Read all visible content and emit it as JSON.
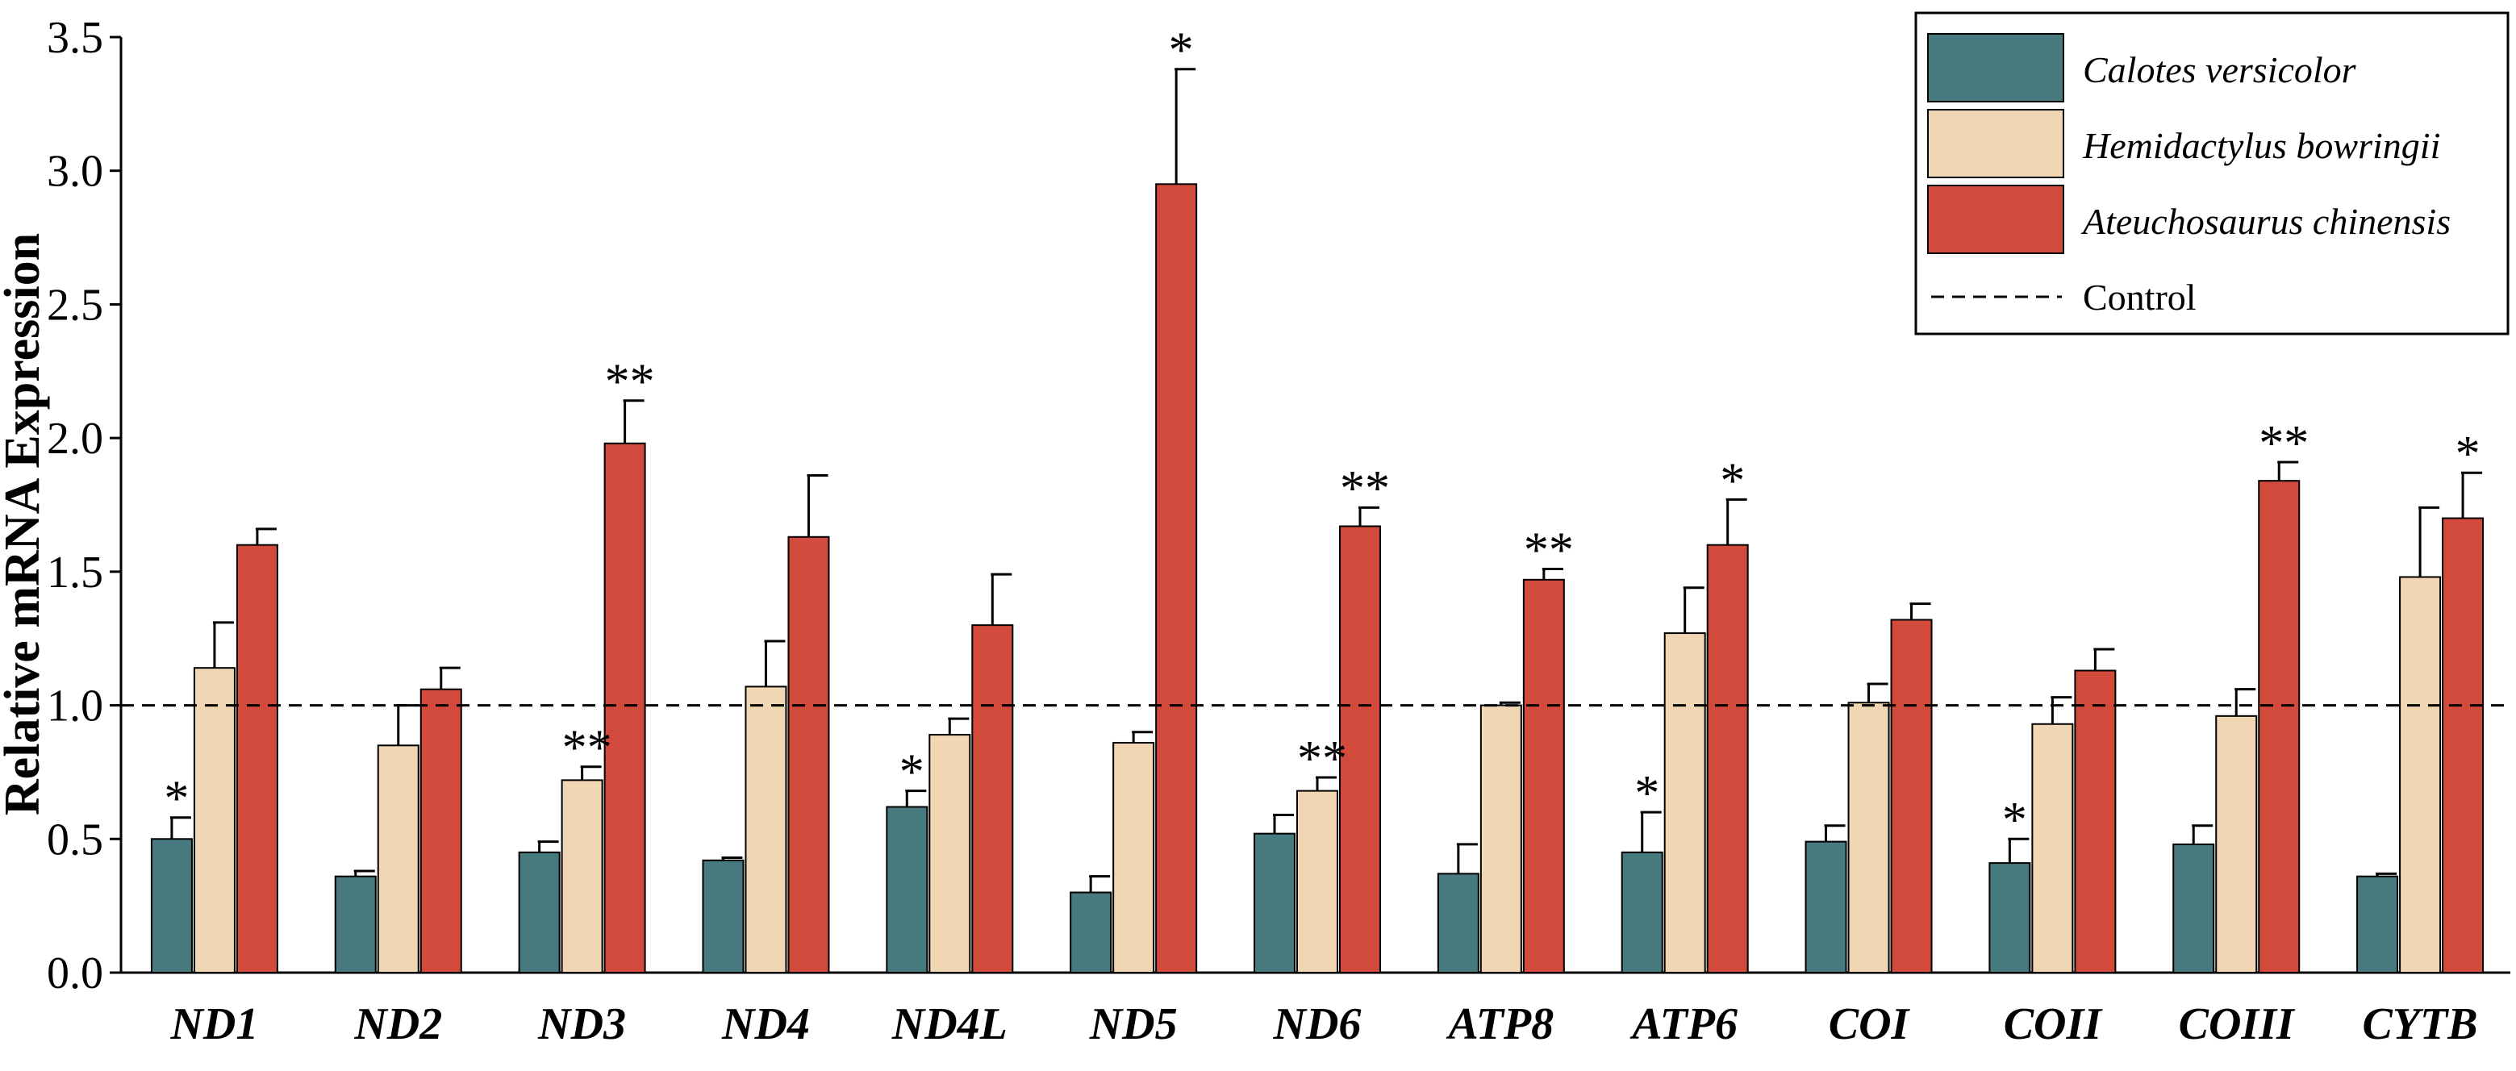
{
  "chart_data": {
    "type": "bar",
    "title": "",
    "xlabel": "",
    "ylabel": "Relative mRNA Expression",
    "ylim": [
      0,
      3.5
    ],
    "yticks": [
      "0.0",
      "0.5",
      "1.0",
      "1.5",
      "2.0",
      "2.5",
      "3.0",
      "3.5"
    ],
    "categories": [
      "ND1",
      "ND2",
      "ND3",
      "ND4",
      "ND4L",
      "ND5",
      "ND6",
      "ATP8",
      "ATP6",
      "COI",
      "COII",
      "COIII",
      "CYTB"
    ],
    "series": [
      {
        "name": "Calotes versicolor",
        "color": "#467a7e",
        "values": [
          0.5,
          0.36,
          0.45,
          0.42,
          0.62,
          0.3,
          0.52,
          0.37,
          0.45,
          0.49,
          0.41,
          0.48,
          0.36
        ],
        "errors": [
          0.08,
          0.02,
          0.04,
          0.01,
          0.06,
          0.06,
          0.07,
          0.11,
          0.15,
          0.06,
          0.09,
          0.07,
          0.01
        ],
        "significance": [
          "*",
          "",
          "",
          "",
          "*",
          "",
          "",
          "",
          "*",
          "",
          "*",
          "",
          ""
        ]
      },
      {
        "name": "Hemidactylus bowringii",
        "color": "#f0d6b2",
        "values": [
          1.14,
          0.85,
          0.72,
          1.07,
          0.89,
          0.86,
          0.68,
          1.0,
          1.27,
          1.01,
          0.93,
          0.96,
          1.48
        ],
        "errors": [
          0.17,
          0.15,
          0.05,
          0.17,
          0.06,
          0.04,
          0.05,
          0.01,
          0.17,
          0.07,
          0.1,
          0.1,
          0.26
        ],
        "significance": [
          "",
          "",
          "**",
          "",
          "",
          "",
          "**",
          "",
          "",
          "",
          "",
          "",
          ""
        ]
      },
      {
        "name": "Ateuchosaurus chinensis",
        "color": "#d14a3c",
        "values": [
          1.6,
          1.06,
          1.98,
          1.63,
          1.3,
          2.95,
          1.67,
          1.47,
          1.6,
          1.32,
          1.13,
          1.84,
          1.7
        ],
        "errors": [
          0.06,
          0.08,
          0.16,
          0.23,
          0.19,
          0.43,
          0.07,
          0.04,
          0.17,
          0.06,
          0.08,
          0.07,
          0.17
        ],
        "significance": [
          "",
          "",
          "**",
          "",
          "",
          "*",
          "**",
          "**",
          "*",
          "",
          "",
          "**",
          "*"
        ]
      }
    ],
    "reference_line": {
      "value": 1.0,
      "label": "Control",
      "style": "dashed"
    },
    "legend": {
      "position": "top-right",
      "entries": [
        "Calotes versicolor",
        "Hemidactylus bowringii",
        "Ateuchosaurus chinensis",
        "Control"
      ]
    },
    "grid": false
  }
}
